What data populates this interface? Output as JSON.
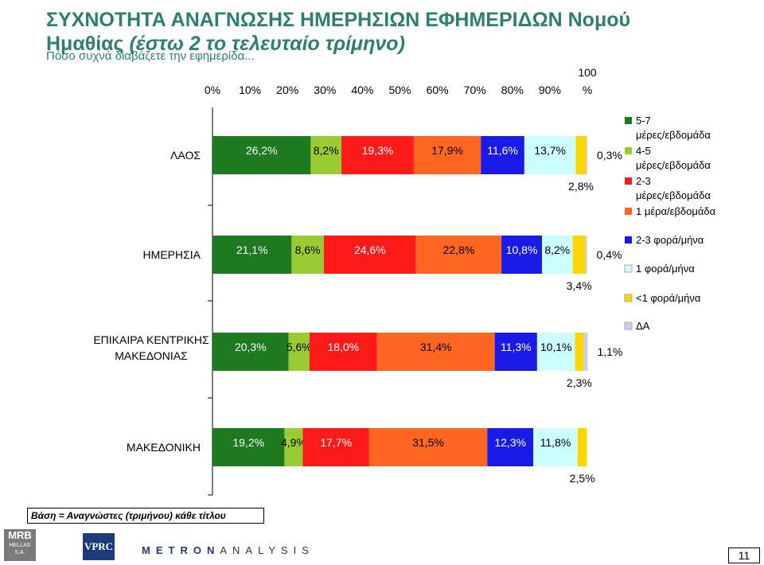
{
  "header": {
    "title_line1": "ΣΥΧΝΟΤΗΤΑ ΑΝΑΓΝΩΣΗΣ ΗΜΕΡΗΣΙΩΝ ΕΦΗΜΕΡΙΔΩΝ Νομού",
    "title_line2": "Ημαθίας",
    "title_line2_italic": "(έστω 2 το τελευταίο τρίμηνο)",
    "subtitle": "Πόσο συχνά διαβάζετε την εφημερίδα..."
  },
  "footer": {
    "base_note": "Βάση = Αναγνώστες (τριμήνου) κάθε τίτλου",
    "logo_mrb": "MRB",
    "logo_mrb_sub": "HELLAS S.A.",
    "logo_vprc": "VPRC",
    "logo_metron_a": "METRON",
    "logo_metron_b": "ANALYSIS",
    "page_number": "11"
  },
  "chart_data": {
    "type": "bar",
    "orientation": "horizontal",
    "stacked": true,
    "percent_axis": true,
    "xlim": [
      0,
      100
    ],
    "tick_labels": [
      "0%",
      "10%",
      "20%",
      "30%",
      "40%",
      "50%",
      "60%",
      "70%",
      "80%",
      "90%",
      "100 %"
    ],
    "categories": [
      "ΛΑΟΣ",
      "ΗΜΕΡΗΣΙΑ",
      "ΕΠΙΚΑΙΡΑ ΚΕΝΤΡΙΚΗΣ ΜΑΚΕΔΟΝΙΑΣ",
      "ΜΑΚΕΔΟΝΙΚΗ"
    ],
    "legend_position": "right",
    "series": [
      {
        "name": "5-7 μέρες/εβδομάδα",
        "color": "#1e7a1e",
        "values": [
          26.2,
          21.1,
          20.3,
          19.2
        ]
      },
      {
        "name": "4-5 μέρες/εβδομάδα",
        "color": "#99cc33",
        "values": [
          8.2,
          8.6,
          5.6,
          4.9
        ]
      },
      {
        "name": "2-3 μέρες/εβδομάδα",
        "color": "#ff1a1a",
        "values": [
          19.3,
          24.6,
          18.0,
          17.7
        ]
      },
      {
        "name": "1 μέρα/εβδομάδα",
        "color": "#ff6622",
        "values": [
          17.9,
          22.8,
          31.4,
          31.5
        ]
      },
      {
        "name": "2-3 φορά/μήνα",
        "color": "#1a1ae6",
        "values": [
          11.6,
          10.8,
          11.3,
          12.3
        ]
      },
      {
        "name": "1 φορά/μήνα",
        "color": "#ccffff",
        "values": [
          13.7,
          8.2,
          10.1,
          11.8
        ]
      },
      {
        "name": "<1 φορά/μήνα",
        "color": "#ffd700",
        "values": [
          2.8,
          3.4,
          2.3,
          2.5
        ]
      },
      {
        "name": "ΔΑ",
        "color": "#ccccee",
        "values": [
          0.3,
          0.4,
          1.1,
          0
        ]
      }
    ],
    "data_labels": [
      [
        "26,2%",
        "8,2%",
        "19,3%",
        "17,9%",
        "11,6%",
        "13,7%",
        "2,8%",
        "0,3%"
      ],
      [
        "21,1%",
        "8,6%",
        "24,6%",
        "22,8%",
        "10,8%",
        "8,2%",
        "3,4%",
        "0,4%"
      ],
      [
        "20,3%",
        "5,6%",
        "18,0%",
        "31,4%",
        "11,3%",
        "10,1%",
        "2,3%",
        "1,1%"
      ],
      [
        "19,2%",
        "4,9%",
        "17,7%",
        "31,5%",
        "12,3%",
        "11,8%",
        "2,5%",
        ""
      ]
    ]
  }
}
